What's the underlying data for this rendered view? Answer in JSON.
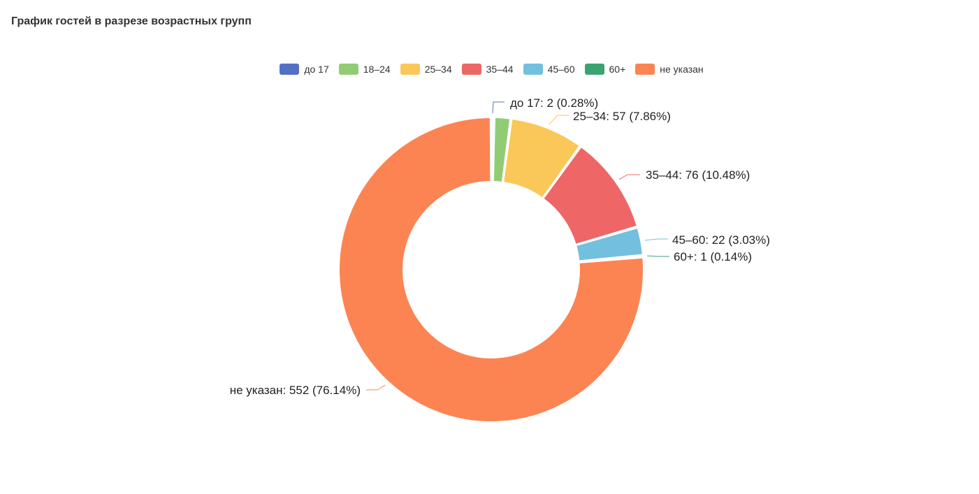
{
  "header": {
    "title": "График гостей в разрезе возрастных групп"
  },
  "chart_data": {
    "type": "pie",
    "donut": true,
    "legend_position": "top-center",
    "series": [
      {
        "name": "до 17",
        "value": 2,
        "percent": "0.28%",
        "color": "#5470c6",
        "label": "до 17: 2 (0.28%)"
      },
      {
        "name": "18–24",
        "value": 13,
        "percent": "1.79%",
        "color": "#91cc75",
        "label": ""
      },
      {
        "name": "25–34",
        "value": 57,
        "percent": "7.86%",
        "color": "#fac858",
        "label": "25–34: 57 (7.86%)"
      },
      {
        "name": "35–44",
        "value": 76,
        "percent": "10.48%",
        "color": "#ee6666",
        "label": "35–44: 76 (10.48%)"
      },
      {
        "name": "45–60",
        "value": 22,
        "percent": "3.03%",
        "color": "#73c0de",
        "label": "45–60: 22 (3.03%)"
      },
      {
        "name": "60+",
        "value": 1,
        "percent": "0.14%",
        "color": "#3ba272",
        "label": "60+: 1 (0.14%)"
      },
      {
        "name": "не указан",
        "value": 552,
        "percent": "76.14%",
        "color": "#fc8452",
        "label": "не указан: 552 (76.14%)"
      }
    ]
  }
}
